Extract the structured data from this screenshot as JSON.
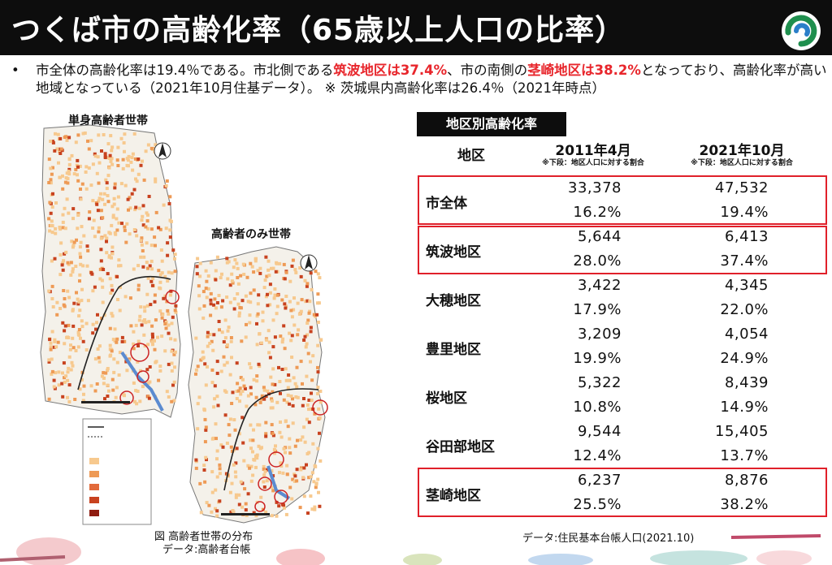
{
  "header": {
    "title": "つくば市の高齢化率（65歳以上人口の比率）"
  },
  "summary": {
    "bullet": "•",
    "part1": "市全体の高齢化率は19.4％である。市北側である",
    "hl1": "筑波地区は37.4%",
    "part2": "、市の南側の",
    "hl2": "茎崎地区は38.2%",
    "part3": "となっており、高齢化率が高い地域となっている（2021年10月住基データ）。 ※ 茨城県内高齢化率は26.4％（2021年時点）"
  },
  "maps": {
    "map1_title": "単身高齢者世帯",
    "map2_title": "高齢者のみ世帯",
    "caption_line1": "図 高齢者世帯の分布",
    "caption_line2": "データ:高齢者台帳"
  },
  "table": {
    "header": "地区別高齢化率",
    "col_district": "地区",
    "col_2011": "2011年4月",
    "col_2021": "2021年10月",
    "note": "※下段：地区人口に対する割合",
    "rows": [
      {
        "name": "市全体",
        "c2011": "33,378",
        "p2011": "16.2%",
        "c2021": "47,532",
        "p2021": "19.4%"
      },
      {
        "name": "筑波地区",
        "c2011": "5,644",
        "p2011": "28.0%",
        "c2021": "6,413",
        "p2021": "37.4%"
      },
      {
        "name": "大穂地区",
        "c2011": "3,422",
        "p2011": "17.9%",
        "c2021": "4,345",
        "p2021": "22.0%"
      },
      {
        "name": "豊里地区",
        "c2011": "3,209",
        "p2011": "19.9%",
        "c2021": "4,054",
        "p2021": "24.9%"
      },
      {
        "name": "桜地区",
        "c2011": "5,322",
        "p2011": "10.8%",
        "c2021": "8,439",
        "p2021": "14.9%"
      },
      {
        "name": "谷田部地区",
        "c2011": "9,544",
        "p2011": "12.4%",
        "c2021": "15,405",
        "p2021": "13.7%"
      },
      {
        "name": "茎崎地区",
        "c2011": "6,237",
        "p2011": "25.5%",
        "c2021": "8,876",
        "p2021": "38.2%"
      }
    ],
    "source": "データ:住民基本台帳人口(2021.10)"
  },
  "colors": {
    "highlight": "#e8262c",
    "header_bg": "#0d0d0d",
    "box_red": "#e0202a",
    "map_light": "#f7c98e",
    "map_mid": "#ee9a55",
    "map_dark": "#c8421f"
  }
}
